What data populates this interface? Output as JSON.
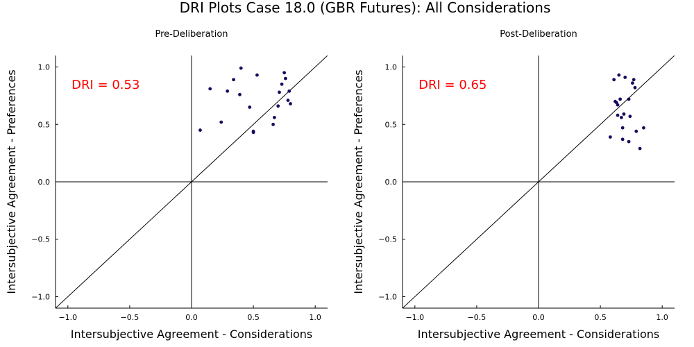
{
  "title": "DRI Plots Case 18.0 (GBR Futures): All Considerations",
  "chart_data": [
    {
      "type": "scatter",
      "title": "Pre-Deliberation",
      "xlabel": "Intersubjective Agreement - Considerations",
      "ylabel": "Intersubjective Agreement - Preferences",
      "xlim": [
        -1.1,
        1.1
      ],
      "ylim": [
        -1.1,
        1.1
      ],
      "xticks": [
        -1.0,
        -0.5,
        0.0,
        0.5,
        1.0
      ],
      "yticks": [
        -1.0,
        -0.5,
        0.0,
        0.5,
        1.0
      ],
      "xtick_labels": [
        "−1.0",
        "−0.5",
        "0.0",
        "0.5",
        "1.0"
      ],
      "ytick_labels": [
        "−1.0",
        "−0.5",
        "0.0",
        "0.5",
        "1.0"
      ],
      "annotation": "DRI = 0.53",
      "annotation_color": "#ff0000",
      "point_color": "#1a0a5e",
      "reference_lines": [
        "y = x",
        "x = 0",
        "y = 0"
      ],
      "grid": false,
      "x": [
        0.07,
        0.15,
        0.24,
        0.29,
        0.34,
        0.4,
        0.39,
        0.47,
        0.5,
        0.5,
        0.53,
        0.66,
        0.67,
        0.7,
        0.71,
        0.73,
        0.75,
        0.76,
        0.78,
        0.8,
        0.79
      ],
      "y": [
        0.45,
        0.81,
        0.52,
        0.79,
        0.89,
        0.99,
        0.76,
        0.65,
        0.44,
        0.43,
        0.93,
        0.5,
        0.56,
        0.66,
        0.78,
        0.85,
        0.95,
        0.9,
        0.71,
        0.68,
        0.79
      ]
    },
    {
      "type": "scatter",
      "title": "Post-Deliberation",
      "xlabel": "Intersubjective Agreement - Considerations",
      "ylabel": "Intersubjective Agreement - Preferences",
      "xlim": [
        -1.1,
        1.1
      ],
      "ylim": [
        -1.1,
        1.1
      ],
      "xticks": [
        -1.0,
        -0.5,
        0.0,
        0.5,
        1.0
      ],
      "yticks": [
        -1.0,
        -0.5,
        0.0,
        0.5,
        1.0
      ],
      "xtick_labels": [
        "−1.0",
        "−0.5",
        "0.0",
        "0.5",
        "1.0"
      ],
      "ytick_labels": [
        "−1.0",
        "−0.5",
        "0.0",
        "0.5",
        "1.0"
      ],
      "annotation": "DRI = 0.65",
      "annotation_color": "#ff0000",
      "point_color": "#1a0a5e",
      "reference_lines": [
        "y = x",
        "x = 0",
        "y = 0"
      ],
      "grid": false,
      "x": [
        0.58,
        0.61,
        0.62,
        0.63,
        0.64,
        0.64,
        0.65,
        0.66,
        0.67,
        0.68,
        0.68,
        0.69,
        0.7,
        0.73,
        0.73,
        0.74,
        0.76,
        0.77,
        0.78,
        0.79,
        0.82,
        0.85
      ],
      "y": [
        0.39,
        0.89,
        0.7,
        0.69,
        0.67,
        0.58,
        0.93,
        0.72,
        0.56,
        0.37,
        0.47,
        0.59,
        0.91,
        0.72,
        0.35,
        0.57,
        0.86,
        0.89,
        0.82,
        0.44,
        0.29,
        0.47
      ]
    }
  ]
}
